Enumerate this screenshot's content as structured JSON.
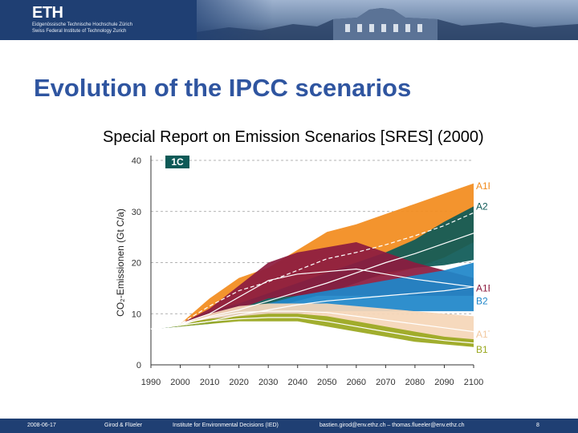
{
  "header": {
    "logo_text": "ETH",
    "institution_line1": "Eidgenössische Technische Hochschule Zürich",
    "institution_line2": "Swiss Federal Institute of Technology Zurich"
  },
  "slide": {
    "title": "Evolution of the IPCC scenarios",
    "subtitle": "Special Report on Emission Scenarios [SRES] (2000)"
  },
  "chart_data": {
    "type": "area",
    "badge": "1C",
    "xlabel": "",
    "ylabel": "CO₂-Emissionen (Gt C/a)",
    "xlim": [
      1990,
      2100
    ],
    "ylim": [
      0,
      40
    ],
    "x_ticks": [
      1990,
      2000,
      2010,
      2020,
      2030,
      2040,
      2050,
      2060,
      2070,
      2080,
      2090,
      2100
    ],
    "y_ticks": [
      0,
      10,
      20,
      30,
      40
    ],
    "x": [
      1990,
      2000,
      2010,
      2020,
      2030,
      2040,
      2050,
      2060,
      2070,
      2080,
      2090,
      2100
    ],
    "series": [
      {
        "name": "A1FI",
        "color": "#f28c1e",
        "label_color": "#f28c1e",
        "label_value": 35,
        "upper": [
          7,
          8,
          13,
          17,
          19,
          22.5,
          26,
          27.5,
          29.5,
          31.5,
          33.5,
          35.5
        ],
        "lower": [
          7,
          8,
          10,
          12,
          13.5,
          14.5,
          15.5,
          16.5,
          17.5,
          19,
          21,
          24
        ]
      },
      {
        "name": "A2",
        "color": "#0e5a57",
        "label_color": "#0e5a57",
        "label_value": 31,
        "upper": [
          7,
          8,
          10.5,
          12,
          14,
          16,
          18,
          20,
          22,
          24.5,
          28,
          31
        ],
        "lower": [
          7,
          7.5,
          8.5,
          9.5,
          11,
          12.5,
          14,
          16,
          18,
          19,
          19.5,
          20.5
        ]
      },
      {
        "name": "A1B",
        "color": "#8c1c3f",
        "label_color": "#8c1c3f",
        "label_value": 15,
        "upper": [
          7,
          8,
          11,
          15.5,
          20,
          22,
          23,
          24,
          22,
          20,
          18.5,
          17
        ],
        "lower": [
          7,
          8,
          9,
          11,
          13,
          13.5,
          13.5,
          13.5,
          13.5,
          13.5,
          13.5,
          13.5
        ]
      },
      {
        "name": "B2",
        "color": "#1f86c9",
        "label_color": "#1f86c9",
        "label_value": 12.5,
        "upper": [
          7,
          8,
          9,
          10.5,
          12,
          13.5,
          14.5,
          15.5,
          16.5,
          17.5,
          18.5,
          20
        ],
        "lower": [
          7,
          7.5,
          8,
          9,
          9.5,
          10,
          10.5,
          10.5,
          10.5,
          10.5,
          10.5,
          10.5
        ]
      },
      {
        "name": "A1T",
        "color": "#f5d6b8",
        "label_color": "#f2c9a0",
        "label_value": 6,
        "upper": [
          7,
          8,
          10,
          11.5,
          12,
          12,
          12,
          11.5,
          11,
          10.5,
          10,
          9.5
        ],
        "lower": [
          7,
          8,
          8.5,
          9,
          9,
          9,
          8.5,
          7.5,
          6.5,
          5.5,
          4.5,
          3.5
        ]
      },
      {
        "name": "B1",
        "color": "#9aa81f",
        "label_color": "#9aa81f",
        "label_value": 3,
        "upper": [
          7,
          8,
          9,
          9.5,
          10,
          10,
          9.5,
          8.5,
          7.5,
          6.5,
          5.5,
          5
        ],
        "lower": [
          7,
          7.5,
          8,
          8.5,
          8.5,
          8.5,
          7.5,
          6.5,
          5.5,
          4.5,
          4,
          3.5
        ]
      }
    ]
  },
  "footer": {
    "date": "2008-06-17",
    "authors": "Girod & Flüeler",
    "institute": "Institute for Environmental Decisions (IED)",
    "emails": "bastien.girod@env.ethz.ch – thomas.flueeler@env.ethz.ch",
    "page": "8"
  },
  "colors": {
    "header_bg": "#1f3f73",
    "title": "#2f55a0",
    "badge_bg": "#0e5a57"
  }
}
